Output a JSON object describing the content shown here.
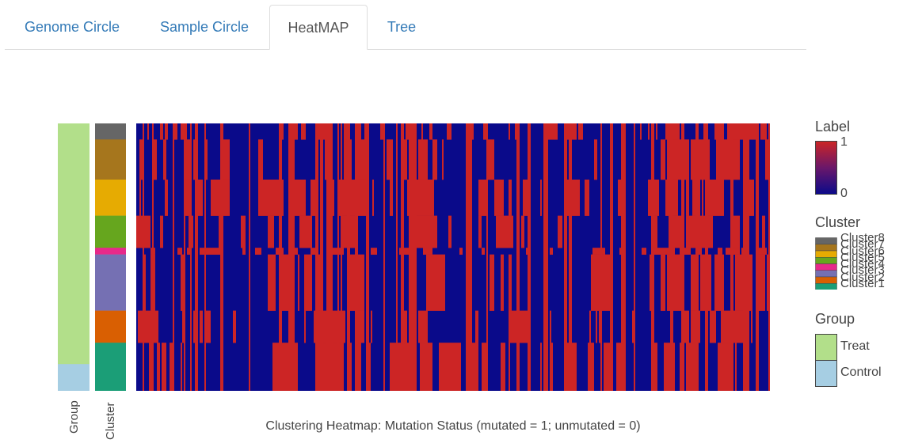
{
  "tabs": [
    {
      "label": "Genome Circle",
      "active": false
    },
    {
      "label": "Sample Circle",
      "active": false
    },
    {
      "label": "HeatMAP",
      "active": true
    },
    {
      "label": "Tree",
      "active": false
    }
  ],
  "chart_data": {
    "type": "heatmap",
    "title": "Clustering Heatmap: Mutation Status (mutated = 1; unmutated = 0)",
    "colorscale": {
      "low": "#0a0a8a",
      "high": "#cc2525",
      "min": 0,
      "max": 1
    },
    "annotation_tracks": [
      {
        "name": "Group",
        "segments": [
          {
            "label": "Treat",
            "fraction": 0.9,
            "color": "#b2df8a"
          },
          {
            "label": "Control",
            "fraction": 0.1,
            "color": "#a6cee3"
          }
        ]
      },
      {
        "name": "Cluster",
        "segments": [
          {
            "label": "Cluster8",
            "fraction": 0.06,
            "color": "#666666"
          },
          {
            "label": "Cluster7",
            "fraction": 0.15,
            "color": "#a6761d"
          },
          {
            "label": "Cluster6",
            "fraction": 0.135,
            "color": "#e6ab02"
          },
          {
            "label": "Cluster5",
            "fraction": 0.12,
            "color": "#66a61e"
          },
          {
            "label": "Cluster4",
            "fraction": 0.025,
            "color": "#e7298a"
          },
          {
            "label": "Cluster3",
            "fraction": 0.21,
            "color": "#7570b3"
          },
          {
            "label": "Cluster2",
            "fraction": 0.12,
            "color": "#d95f02"
          },
          {
            "label": "Cluster1",
            "fraction": 0.18,
            "color": "#1b9e77"
          }
        ]
      }
    ],
    "legend": {
      "label_title": "Label",
      "label_max": "1",
      "label_min": "0",
      "cluster_title": "Cluster",
      "cluster_items": [
        "Cluster8",
        "Cluster7",
        "Cluster6",
        "Cluster5",
        "Cluster4",
        "Cluster3",
        "Cluster2",
        "Cluster1"
      ],
      "group_title": "Group",
      "group_items": [
        "Treat",
        "Control"
      ]
    }
  }
}
